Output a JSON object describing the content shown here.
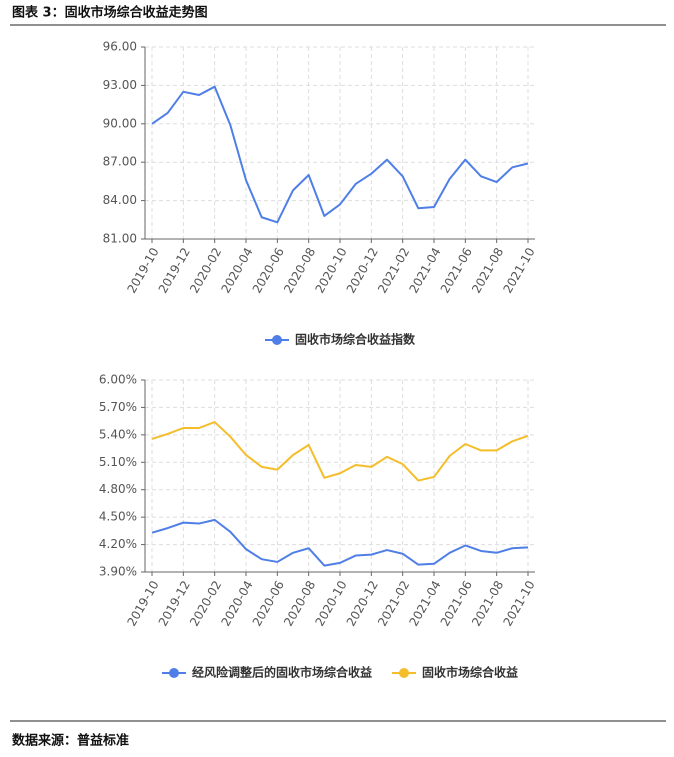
{
  "header": {
    "title": "图表 3：固收市场综合收益走势图"
  },
  "chart_data": [
    {
      "type": "line",
      "categories": [
        "2019-10",
        null,
        "2019-12",
        null,
        "2020-02",
        null,
        "2020-04",
        null,
        "2020-06",
        null,
        "2020-08",
        null,
        "2020-10",
        null,
        "2020-12",
        null,
        "2021-02",
        null,
        "2021-04",
        null,
        "2021-06",
        null,
        "2021-08",
        null,
        "2021-10"
      ],
      "series": [
        {
          "name": "固收市场综合收益指数",
          "color": "#4f7fe6",
          "values": [
            90.0,
            90.85,
            92.5,
            92.25,
            92.9,
            89.9,
            85.6,
            82.7,
            82.3,
            84.8,
            86.0,
            82.8,
            83.7,
            85.3,
            86.1,
            87.2,
            85.9,
            83.4,
            83.5,
            85.7,
            87.2,
            85.9,
            85.45,
            86.6,
            86.9
          ]
        }
      ],
      "ylim": [
        81,
        96
      ],
      "yticks": [
        {
          "value": 81,
          "label": "81.00"
        },
        {
          "value": 84,
          "label": "84.00"
        },
        {
          "value": 87,
          "label": "87.00"
        },
        {
          "value": 90,
          "label": "90.00"
        },
        {
          "value": 93,
          "label": "93.00"
        },
        {
          "value": 96,
          "label": "96.00"
        }
      ],
      "grid": true,
      "legend": "bottom"
    },
    {
      "type": "line",
      "categories": [
        "2019-10",
        null,
        "2019-12",
        null,
        "2020-02",
        null,
        "2020-04",
        null,
        "2020-06",
        null,
        "2020-08",
        null,
        "2020-10",
        null,
        "2020-12",
        null,
        "2021-02",
        null,
        "2021-04",
        null,
        "2021-06",
        null,
        "2021-08",
        null,
        "2021-10"
      ],
      "series": [
        {
          "name": "经风险调整后的固收市场综合收益",
          "color": "#4f7fe6",
          "values": [
            4.33,
            4.38,
            4.44,
            4.43,
            4.47,
            4.34,
            4.15,
            4.04,
            4.01,
            4.11,
            4.16,
            3.97,
            4.0,
            4.08,
            4.09,
            4.14,
            4.1,
            3.98,
            3.99,
            4.11,
            4.19,
            4.13,
            4.11,
            4.16,
            4.17
          ]
        },
        {
          "name": "固收市场综合收益",
          "color": "#f5bd2a",
          "values": [
            5.355,
            5.41,
            5.475,
            5.475,
            5.54,
            5.38,
            5.18,
            5.05,
            5.02,
            5.18,
            5.29,
            4.93,
            4.98,
            5.07,
            5.05,
            5.16,
            5.08,
            4.9,
            4.94,
            5.17,
            5.3,
            5.23,
            5.23,
            5.33,
            5.39
          ]
        }
      ],
      "ylim": [
        3.9,
        6.0
      ],
      "yticks": [
        {
          "value": 3.9,
          "label": "3.90%"
        },
        {
          "value": 4.2,
          "label": "4.20%"
        },
        {
          "value": 4.5,
          "label": "4.50%"
        },
        {
          "value": 4.8,
          "label": "4.80%"
        },
        {
          "value": 5.1,
          "label": "5.10%"
        },
        {
          "value": 5.4,
          "label": "5.40%"
        },
        {
          "value": 5.7,
          "label": "5.70%"
        },
        {
          "value": 6.0,
          "label": "6.00%"
        }
      ],
      "grid": true,
      "legend": "bottom"
    }
  ],
  "footer": {
    "source": "数据来源：普益标准"
  }
}
